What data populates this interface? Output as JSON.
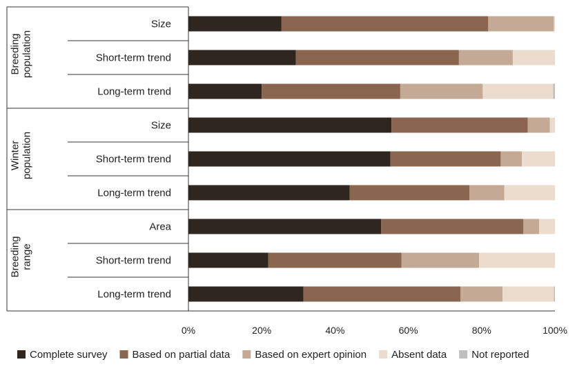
{
  "chart_data": {
    "type": "bar",
    "stacked": true,
    "orientation": "horizontal",
    "groups": [
      {
        "label_lines": [
          "Breeding",
          "population"
        ],
        "rows": [
          "Size",
          "Short-term trend",
          "Long-term trend"
        ]
      },
      {
        "label_lines": [
          "Winter",
          "population"
        ],
        "rows": [
          "Size",
          "Short-term trend",
          "Long-term trend"
        ]
      },
      {
        "label_lines": [
          "Breeding",
          "range"
        ],
        "rows": [
          "Area",
          "Short-term trend",
          "Long-term trend"
        ]
      }
    ],
    "categories": [
      "Breeding population - Size",
      "Breeding population - Short-term trend",
      "Breeding population - Long-term trend",
      "Winter population - Size",
      "Winter population - Short-term trend",
      "Winter population - Long-term trend",
      "Breeding range - Area",
      "Breeding range - Short-term trend",
      "Breeding range - Long-term trend"
    ],
    "series": [
      {
        "name": "Complete survey",
        "color": "#2f2620",
        "values": [
          25.4,
          29.3,
          20.0,
          55.4,
          55.1,
          44.0,
          52.6,
          21.8,
          31.4
        ]
      },
      {
        "name": "Based on partial data",
        "color": "#8a6550",
        "values": [
          56.4,
          44.5,
          37.8,
          37.2,
          30.1,
          32.7,
          38.8,
          36.3,
          42.8
        ]
      },
      {
        "name": "Based on expert opinion",
        "color": "#c4aa94",
        "values": [
          17.9,
          14.7,
          22.5,
          6.0,
          5.8,
          9.5,
          4.3,
          21.2,
          11.5
        ]
      },
      {
        "name": "Absent data",
        "color": "#ebdccd",
        "values": [
          0.3,
          11.5,
          19.2,
          1.4,
          9.0,
          13.8,
          4.3,
          20.7,
          14.0
        ]
      },
      {
        "name": "Not reported",
        "color": "#bfbfbf",
        "values": [
          0.0,
          0.0,
          0.5,
          0.0,
          0.0,
          0.0,
          0.0,
          0.0,
          0.3
        ]
      }
    ],
    "xlim": [
      0,
      100
    ],
    "x_ticks": [
      "0%",
      "20%",
      "40%",
      "60%",
      "80%",
      "100%"
    ],
    "grid": false,
    "legend_position": "bottom"
  }
}
